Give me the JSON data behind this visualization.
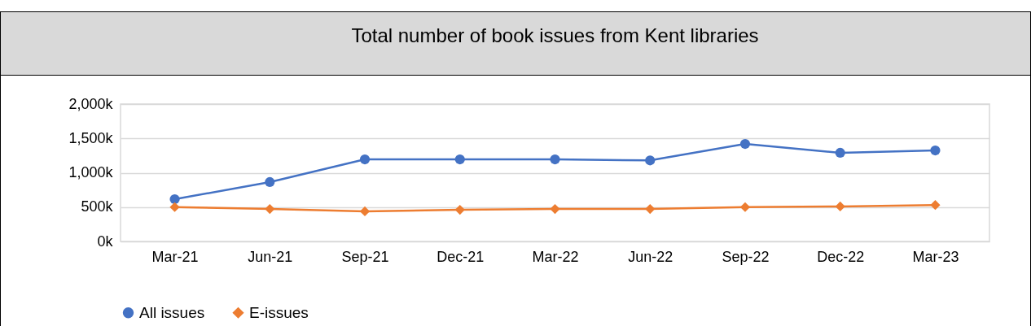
{
  "chart_data": {
    "type": "line",
    "title": "Total number of book issues from Kent libraries",
    "categories": [
      "Mar-21",
      "Jun-21",
      "Sep-21",
      "Dec-21",
      "Mar-22",
      "Jun-22",
      "Sep-22",
      "Dec-22",
      "Mar-23"
    ],
    "series": [
      {
        "name": "All issues",
        "color": "#4472c4",
        "marker": "circle",
        "values": [
          615,
          864,
          1195,
          1195,
          1195,
          1180,
          1420,
          1290,
          1325
        ]
      },
      {
        "name": "E-issues",
        "color": "#ed7d31",
        "marker": "diamond",
        "values": [
          500,
          473,
          438,
          461,
          473,
          473,
          500,
          510,
          530
        ]
      }
    ],
    "ylim": [
      0,
      2000
    ],
    "yticks": [
      {
        "value": 0,
        "label": "0k"
      },
      {
        "value": 500,
        "label": "500k"
      },
      {
        "value": 1000,
        "label": "1,000k"
      },
      {
        "value": 1500,
        "label": "1,500k"
      },
      {
        "value": 2000,
        "label": "2,000k"
      }
    ],
    "grid": "y",
    "legend": "bottom",
    "line_style": "solid"
  }
}
